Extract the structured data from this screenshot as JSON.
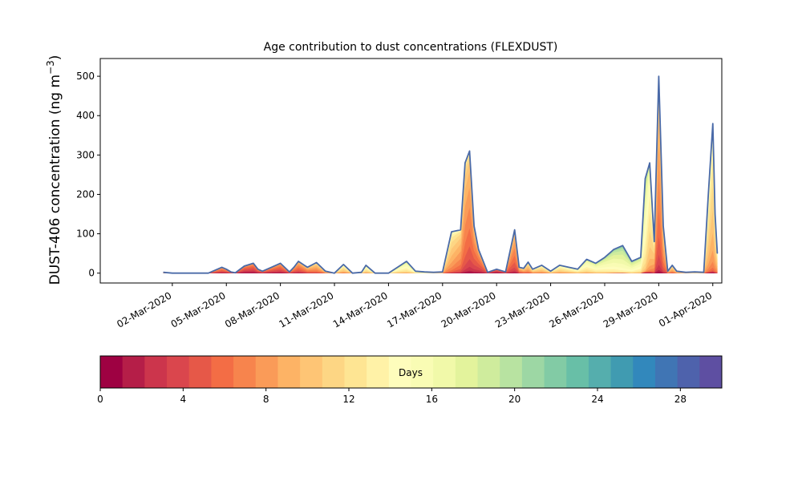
{
  "chart_data": {
    "type": "area",
    "title": "Age contribution to dust concentrations (FLEXDUST)",
    "ylabel": "DUST-406 concentration (ng m",
    "ylabel_sup": "−3",
    "ylabel_close": ")",
    "ylim": [
      -25,
      545
    ],
    "yticks": [
      0,
      100,
      200,
      300,
      400,
      500
    ],
    "xlim": [
      "2020-02-27T00:00",
      "2020-04-01T12:00"
    ],
    "xticks": [
      "02-Mar-2020",
      "05-Mar-2020",
      "08-Mar-2020",
      "11-Mar-2020",
      "14-Mar-2020",
      "17-Mar-2020",
      "20-Mar-2020",
      "23-Mar-2020",
      "26-Mar-2020",
      "29-Mar-2020",
      "01-Apr-2020"
    ],
    "xtick_dates": [
      "2020-03-02",
      "2020-03-05",
      "2020-03-08",
      "2020-03-11",
      "2020-03-14",
      "2020-03-17",
      "2020-03-20",
      "2020-03-23",
      "2020-03-26",
      "2020-03-29",
      "2020-04-01"
    ],
    "total_line_color": "#4a6aa8",
    "total_concentration": {
      "dates": [
        "2020-03-01T12:00",
        "2020-03-02T00:00",
        "2020-03-03T00:00",
        "2020-03-04T00:00",
        "2020-03-04T18:00",
        "2020-03-05T00:00",
        "2020-03-05T06:00",
        "2020-03-05T12:00",
        "2020-03-06T00:00",
        "2020-03-06T12:00",
        "2020-03-06T18:00",
        "2020-03-07T00:00",
        "2020-03-07T12:00",
        "2020-03-08T00:00",
        "2020-03-08T12:00",
        "2020-03-08T18:00",
        "2020-03-09T00:00",
        "2020-03-09T12:00",
        "2020-03-10T00:00",
        "2020-03-10T12:00",
        "2020-03-11T00:00",
        "2020-03-11T12:00",
        "2020-03-12T00:00",
        "2020-03-12T12:00",
        "2020-03-12T18:00",
        "2020-03-13T06:00",
        "2020-03-13T12:00",
        "2020-03-14T00:00",
        "2020-03-14T12:00",
        "2020-03-15T00:00",
        "2020-03-15T12:00",
        "2020-03-16T00:00",
        "2020-03-16T12:00",
        "2020-03-17T00:00",
        "2020-03-17T12:00",
        "2020-03-18T00:00",
        "2020-03-18T06:00",
        "2020-03-18T12:00",
        "2020-03-18T18:00",
        "2020-03-19T00:00",
        "2020-03-19T12:00",
        "2020-03-20T00:00",
        "2020-03-20T12:00",
        "2020-03-21T00:00",
        "2020-03-21T06:00",
        "2020-03-21T12:00",
        "2020-03-21T18:00",
        "2020-03-22T00:00",
        "2020-03-22T12:00",
        "2020-03-23T00:00",
        "2020-03-23T12:00",
        "2020-03-24T00:00",
        "2020-03-24T12:00",
        "2020-03-25T00:00",
        "2020-03-25T12:00",
        "2020-03-26T00:00",
        "2020-03-26T12:00",
        "2020-03-27T00:00",
        "2020-03-27T12:00",
        "2020-03-28T00:00",
        "2020-03-28T06:00",
        "2020-03-28T12:00",
        "2020-03-28T18:00",
        "2020-03-29T00:00",
        "2020-03-29T06:00",
        "2020-03-29T12:00",
        "2020-03-29T18:00",
        "2020-03-30T00:00",
        "2020-03-30T12:00",
        "2020-03-31T00:00",
        "2020-03-31T12:00",
        "2020-03-31T18:00",
        "2020-04-01T00:00",
        "2020-04-01T03:00",
        "2020-04-01T06:00"
      ],
      "values": [
        2,
        0,
        0,
        0,
        15,
        10,
        3,
        1,
        18,
        25,
        10,
        5,
        15,
        25,
        3,
        15,
        30,
        15,
        27,
        5,
        0,
        22,
        0,
        2,
        20,
        0,
        0,
        0,
        15,
        30,
        5,
        3,
        2,
        3,
        105,
        110,
        280,
        310,
        120,
        60,
        2,
        10,
        3,
        110,
        15,
        12,
        28,
        10,
        20,
        5,
        20,
        15,
        10,
        35,
        25,
        40,
        60,
        70,
        30,
        40,
        240,
        280,
        80,
        500,
        120,
        5,
        20,
        5,
        2,
        3,
        2,
        200,
        380,
        150,
        50
      ]
    },
    "age_share": [
      {
        "dates": [
          "2020-03-01T12:00",
          "2020-03-06T00:00",
          "2020-03-08T12:00",
          "2020-03-12T00:00",
          "2020-03-16T00:00",
          "2020-03-18T00:00",
          "2020-03-20T00:00",
          "2020-03-22T00:00",
          "2020-03-24T00:00",
          "2020-03-27T00:00",
          "2020-03-28T06:00",
          "2020-03-29T00:00",
          "2020-03-31T00:00",
          "2020-04-01T06:00"
        ],
        "peak_age_days": [
          8,
          4,
          5,
          12,
          14,
          8,
          3,
          10,
          12,
          16,
          14,
          7,
          12,
          10
        ]
      }
    ],
    "colorbar": {
      "label": "Days",
      "min": 0,
      "max": 30,
      "ticks": [
        0,
        4,
        8,
        12,
        16,
        20,
        24,
        28
      ],
      "colors": [
        "#9e0142",
        "#b51e48",
        "#cc354c",
        "#da464d",
        "#e65848",
        "#f36d45",
        "#f7844d",
        "#fa9b58",
        "#fdb365",
        "#fec575",
        "#fdd684",
        "#fee593",
        "#fff2a7",
        "#fefdbc",
        "#f9fcb4",
        "#f1f9a9",
        "#e3f39c",
        "#cfec9d",
        "#b8e3a1",
        "#9dd7a4",
        "#82cba5",
        "#68bfa7",
        "#55aead",
        "#409bb1",
        "#3288bc",
        "#4075b4",
        "#4e62ac",
        "#5e4fa2"
      ]
    }
  }
}
